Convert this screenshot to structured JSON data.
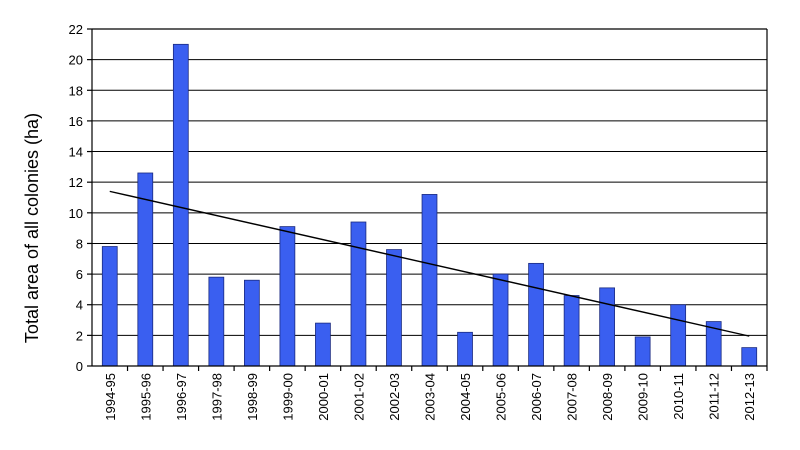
{
  "chart_data": {
    "type": "bar",
    "title": "",
    "xlabel": "",
    "ylabel": "Total area of all colonies (ha)",
    "ylim": [
      0,
      22
    ],
    "yticks": [
      0,
      2,
      4,
      6,
      8,
      10,
      12,
      14,
      16,
      18,
      20,
      22
    ],
    "grid": true,
    "categories": [
      "1994-95",
      "1995-96",
      "1996-97",
      "1997-98",
      "1998-99",
      "1999-00",
      "2000-01",
      "2001-02",
      "2002-03",
      "2003-04",
      "2004-05",
      "2005-06",
      "2006-07",
      "2007-08",
      "2008-09",
      "2009-10",
      "2010-11",
      "2011-12",
      "2012-13"
    ],
    "values": [
      7.8,
      12.6,
      21.0,
      5.8,
      5.6,
      9.1,
      2.8,
      9.4,
      7.6,
      11.2,
      2.2,
      6.0,
      6.7,
      4.6,
      5.1,
      1.9,
      4.0,
      2.9,
      1.2
    ],
    "bar_color": "#3a5ff0",
    "trendline": {
      "type": "linear",
      "start": 11.4,
      "end": 1.95
    }
  }
}
